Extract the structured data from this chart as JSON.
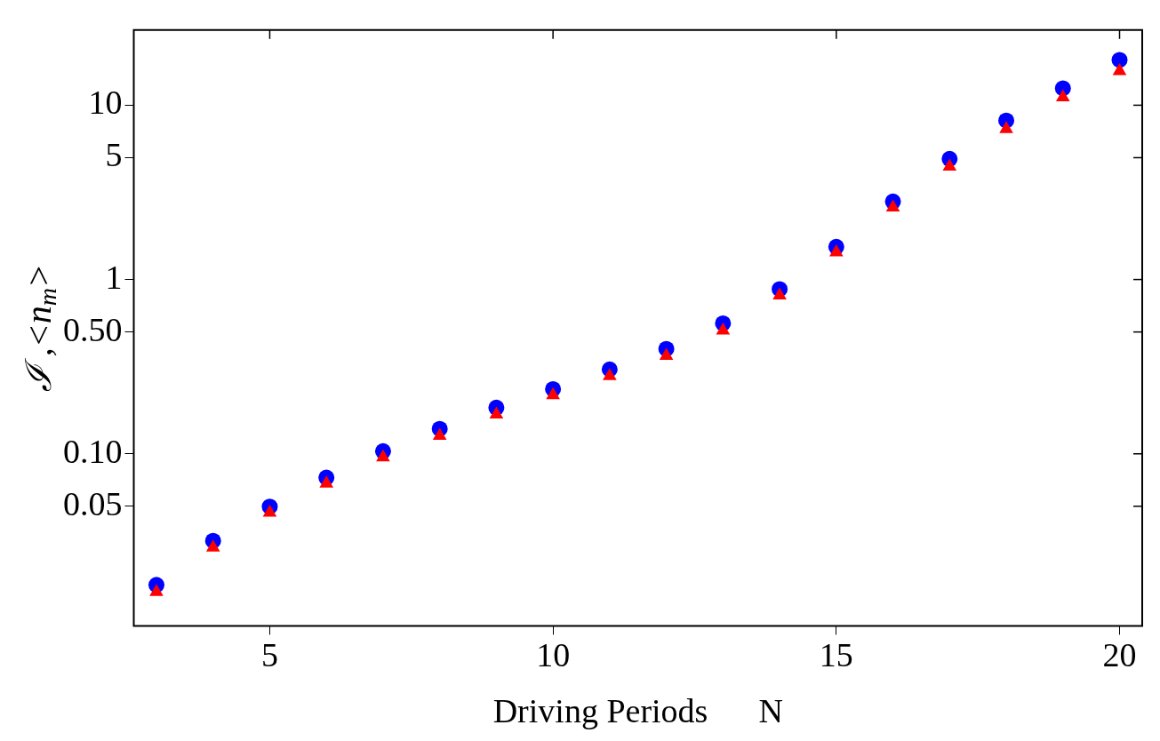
{
  "chart_data": {
    "type": "scatter",
    "xlabel": "Driving Periods      N",
    "ylabel": "ℐ ,<n$_{m}$>",
    "log": "y",
    "grid": false,
    "legend": false,
    "x": [
      3,
      4,
      5,
      6,
      7,
      8,
      9,
      10,
      11,
      12,
      13,
      14,
      15,
      16,
      17,
      18,
      19,
      20
    ],
    "xlim": [
      2.6,
      20.4
    ],
    "xticks": [
      5,
      10,
      15,
      20
    ],
    "ylim": [
      0.0103,
      27
    ],
    "yticks": [
      {
        "value": 0.05,
        "label": "0.05"
      },
      {
        "value": 0.1,
        "label": "0.10"
      },
      {
        "value": 0.5,
        "label": "0.50"
      },
      1,
      5,
      10
    ],
    "series": [
      {
        "color": "#0000ff",
        "marker": "circle",
        "values": [
          0.0177,
          0.0317,
          0.0498,
          0.073,
          0.1035,
          0.139,
          0.184,
          0.235,
          0.305,
          0.4,
          0.56,
          0.88,
          1.54,
          2.8,
          4.92,
          8.17,
          12.5,
          18.2
        ]
      },
      {
        "color": "#ff0000",
        "marker": "triangle",
        "values": [
          0.0161,
          0.029,
          0.046,
          0.0675,
          0.0955,
          0.127,
          0.168,
          0.217,
          0.279,
          0.365,
          0.51,
          0.81,
          1.43,
          2.59,
          4.45,
          7.3,
          11.1,
          15.7
        ]
      }
    ]
  }
}
